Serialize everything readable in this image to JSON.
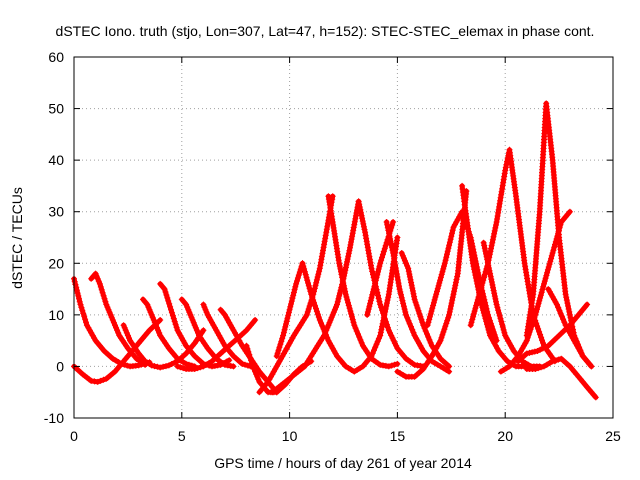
{
  "chart_data": {
    "type": "scatter",
    "title": "dSTEC Iono. truth (stjo, Lon=307, Lat=47, h=152): STEC-STEC_elemax in phase cont.",
    "xlabel": "GPS time / hours of day 261 of year 2014",
    "ylabel": "dSTEC  / TECUs",
    "xlim": [
      0,
      25
    ],
    "ylim": [
      -10,
      60
    ],
    "x_ticks": [
      "0",
      "5",
      "10",
      "15",
      "20",
      "25"
    ],
    "y_ticks": [
      "-10",
      "0",
      "10",
      "20",
      "30",
      "40",
      "50",
      "60"
    ],
    "grid": true,
    "marker": "+",
    "color": "#ff0000",
    "series": [
      {
        "x": [
          0.0,
          0.3,
          0.6,
          1.0,
          1.4,
          1.8,
          2.2,
          2.6,
          3.0,
          3.5
        ],
        "y": [
          17,
          12,
          8,
          5,
          3,
          1.5,
          0.5,
          0,
          0.2,
          0.8
        ]
      },
      {
        "x": [
          0.0,
          0.4,
          0.8,
          1.1,
          1.5,
          1.9,
          2.3,
          2.7,
          3.1,
          3.5,
          4.0
        ],
        "y": [
          0,
          -1.5,
          -2.8,
          -3,
          -2.4,
          -1,
          1,
          3,
          5,
          7,
          9
        ]
      },
      {
        "x": [
          0.8,
          1.0,
          1.2,
          1.5,
          1.8,
          2.1,
          2.5,
          2.9,
          3.3
        ],
        "y": [
          17,
          18,
          16,
          12,
          9,
          6,
          3.5,
          1.5,
          0.3
        ]
      },
      {
        "x": [
          2.3,
          2.6,
          3.0,
          3.3,
          3.6,
          4.0,
          4.4,
          4.8,
          5.2,
          5.6,
          6.0
        ],
        "y": [
          8,
          5,
          2.5,
          1,
          0.2,
          -0.2,
          0.2,
          1,
          2.5,
          4.5,
          7
        ]
      },
      {
        "x": [
          3.2,
          3.4,
          3.7,
          4.0,
          4.4,
          4.8,
          5.2,
          5.6
        ],
        "y": [
          13,
          12,
          9,
          6,
          3.5,
          1.5,
          0.5,
          0
        ]
      },
      {
        "x": [
          4.0,
          4.2,
          4.5,
          4.8,
          5.2,
          5.6,
          6.0,
          6.4,
          6.8,
          7.2
        ],
        "y": [
          16,
          15,
          11,
          7,
          4,
          2,
          0.5,
          0,
          0.3,
          1.2
        ]
      },
      {
        "x": [
          5.0,
          5.2,
          5.5,
          5.8,
          6.2,
          6.6,
          7.0,
          7.4
        ],
        "y": [
          13,
          12,
          9,
          6,
          3.5,
          1.5,
          0.3,
          0
        ]
      },
      {
        "x": [
          6.0,
          6.2,
          6.6,
          7.0,
          7.4,
          7.8,
          8.2
        ],
        "y": [
          12,
          10,
          7,
          4,
          2,
          0.5,
          0
        ]
      },
      {
        "x": [
          6.8,
          7.0,
          7.4,
          7.8,
          8.2,
          8.6,
          9.0,
          9.4
        ],
        "y": [
          11,
          10,
          7,
          4,
          1.5,
          -1,
          -3,
          -5
        ]
      },
      {
        "x": [
          4.8,
          5.2,
          5.6,
          6.0,
          6.4,
          6.8,
          7.2,
          7.6,
          8.0,
          8.4
        ],
        "y": [
          0,
          -0.5,
          -0.5,
          0,
          1,
          2.5,
          4,
          5.5,
          7,
          9
        ]
      },
      {
        "x": [
          8.0,
          8.3,
          8.6,
          9.0,
          9.4,
          9.8,
          10.2,
          10.6,
          11.0
        ],
        "y": [
          4,
          0,
          -3,
          -5,
          -5,
          -3.5,
          -1.5,
          0,
          1
        ]
      },
      {
        "x": [
          8.6,
          9.0,
          9.4,
          9.8,
          10.2,
          10.5,
          10.8,
          11.1,
          11.4,
          11.7,
          12.0
        ],
        "y": [
          -5,
          -3,
          0,
          3,
          6,
          8,
          10,
          14,
          19,
          26,
          33
        ]
      },
      {
        "x": [
          9.2,
          9.5,
          9.8,
          10.1,
          10.4,
          10.7,
          11.0,
          11.3,
          11.6,
          11.9,
          12.2,
          12.5,
          12.8,
          13.2
        ],
        "y": [
          -5,
          -4,
          -3,
          -2,
          -1,
          0,
          2,
          4,
          6,
          9,
          12,
          17,
          23,
          32
        ]
      },
      {
        "x": [
          9.4,
          9.7,
          10.0,
          10.3,
          10.6
        ],
        "y": [
          2,
          6,
          11,
          16,
          20
        ]
      },
      {
        "x": [
          10.6,
          11.0,
          11.4,
          11.8,
          12.2,
          12.6,
          13.0,
          13.4,
          13.8,
          14.2,
          14.6,
          15.0
        ],
        "y": [
          20,
          14,
          9,
          5,
          2,
          0,
          -1,
          0,
          2,
          6,
          14,
          25
        ]
      },
      {
        "x": [
          11.8,
          12.0,
          12.3,
          12.6,
          13.0,
          13.4,
          13.8,
          14.2,
          14.6,
          15.0
        ],
        "y": [
          33,
          28,
          20,
          14,
          8,
          4,
          1.5,
          0.3,
          0,
          0.5
        ]
      },
      {
        "x": [
          13.2,
          13.5,
          13.8,
          14.2,
          14.6,
          15.0,
          15.4,
          15.8,
          16.2
        ],
        "y": [
          32,
          26,
          19,
          12,
          7,
          3.5,
          1.5,
          0.3,
          0
        ]
      },
      {
        "x": [
          13.6,
          13.9,
          14.2,
          14.5,
          14.8
        ],
        "y": [
          10,
          15,
          20,
          24,
          28
        ]
      },
      {
        "x": [
          14.5,
          14.8,
          15.1,
          15.4,
          15.8,
          16.2,
          16.6,
          17.0,
          17.4
        ],
        "y": [
          28,
          22,
          15,
          10,
          6,
          3,
          1,
          0,
          -1
        ]
      },
      {
        "x": [
          15.2,
          15.5,
          15.8,
          16.2,
          16.6,
          17.0,
          17.4
        ],
        "y": [
          22,
          19,
          13,
          8,
          4,
          1.5,
          0
        ]
      },
      {
        "x": [
          15.0,
          15.4,
          15.8,
          16.2,
          16.6,
          17.0,
          17.4,
          17.8,
          18.2
        ],
        "y": [
          -1,
          -2,
          -2,
          -0.5,
          2,
          5,
          10,
          18,
          34
        ]
      },
      {
        "x": [
          16.4,
          16.8,
          17.2,
          17.6,
          18.0,
          18.4,
          18.8,
          19.2,
          19.6
        ],
        "y": [
          8,
          14,
          20,
          27,
          30,
          25,
          17,
          10,
          5
        ]
      },
      {
        "x": [
          18.0,
          18.2,
          18.5,
          18.9,
          19.3,
          19.7,
          20.1,
          20.5,
          21.0
        ],
        "y": [
          35,
          29,
          20,
          12,
          6,
          3,
          1,
          0,
          0
        ]
      },
      {
        "x": [
          18.4,
          18.8,
          19.2,
          19.6,
          20.0,
          20.2,
          20.5,
          20.9,
          21.3,
          21.8,
          22.3
        ],
        "y": [
          8,
          14,
          20,
          28,
          38,
          42,
          33,
          20,
          10,
          4,
          1
        ]
      },
      {
        "x": [
          19.0,
          19.3,
          19.6,
          20.0,
          20.4,
          20.8,
          21.2,
          21.6
        ],
        "y": [
          24,
          18,
          12,
          6,
          3,
          1,
          0,
          0
        ]
      },
      {
        "x": [
          19.8,
          20.2,
          20.6,
          21.0,
          21.4,
          21.8,
          22.2,
          22.6,
          23.0
        ],
        "y": [
          -1,
          0,
          2,
          5,
          10,
          16,
          22,
          28,
          30
        ]
      },
      {
        "x": [
          21.0,
          21.3,
          21.6,
          21.9,
          22.2,
          22.5,
          22.8,
          23.2,
          23.6,
          24.0
        ],
        "y": [
          6,
          14,
          30,
          51,
          40,
          25,
          14,
          6,
          2,
          0
        ]
      },
      {
        "x": [
          20.6,
          21.0,
          21.5,
          22.0,
          22.5,
          23.0,
          23.4,
          23.8
        ],
        "y": [
          1,
          2.5,
          3,
          4,
          6,
          8,
          10,
          12
        ]
      },
      {
        "x": [
          21.0,
          21.4,
          21.8,
          22.2,
          22.6,
          23.0,
          23.4,
          23.8,
          24.2
        ],
        "y": [
          -0.5,
          -0.5,
          0,
          1,
          1.5,
          0,
          -2,
          -4,
          -6
        ]
      },
      {
        "x": [
          22.0,
          22.4,
          22.8,
          23.2,
          23.6,
          24.0
        ],
        "y": [
          15,
          12,
          8,
          5,
          2,
          0
        ]
      }
    ]
  }
}
